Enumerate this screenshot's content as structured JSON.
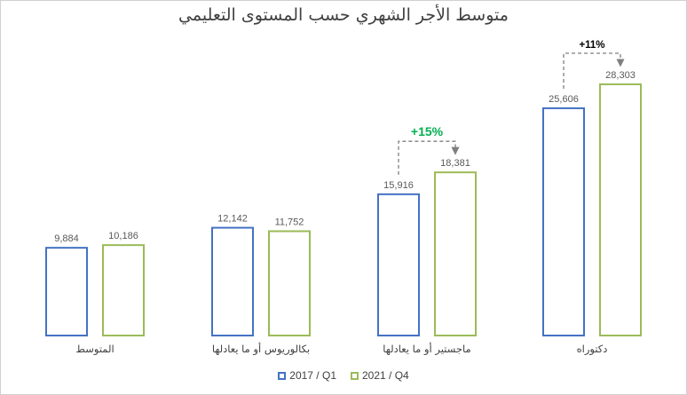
{
  "chart_data": {
    "type": "bar",
    "title": "متوسط الأجر الشهري حسب المستوى التعليمي",
    "categories": [
      "المتوسط",
      "بكالوريوس أو ما يعادلها",
      "ماجستير أو ما يعادلها",
      "دكتوراه"
    ],
    "series": [
      {
        "name": "2017 / Q1",
        "values": [
          9884,
          12142,
          15916,
          25606
        ],
        "labels": [
          "9,884",
          "12,142",
          "15,916",
          "25,606"
        ],
        "color": "#4472c4"
      },
      {
        "name": "2021 / Q4",
        "values": [
          10186,
          11752,
          18381,
          28303
        ],
        "labels": [
          "10,186",
          "11,752",
          "18,381",
          "28,303"
        ],
        "color": "#9bbb59"
      }
    ],
    "annotations": [
      {
        "category_index": 2,
        "text": "+15%",
        "color": "#00b050"
      },
      {
        "category_index": 3,
        "text": "+11%",
        "color": "#000000"
      }
    ],
    "ylim": [
      0,
      30000
    ],
    "grid": false,
    "legend": "bottom"
  }
}
